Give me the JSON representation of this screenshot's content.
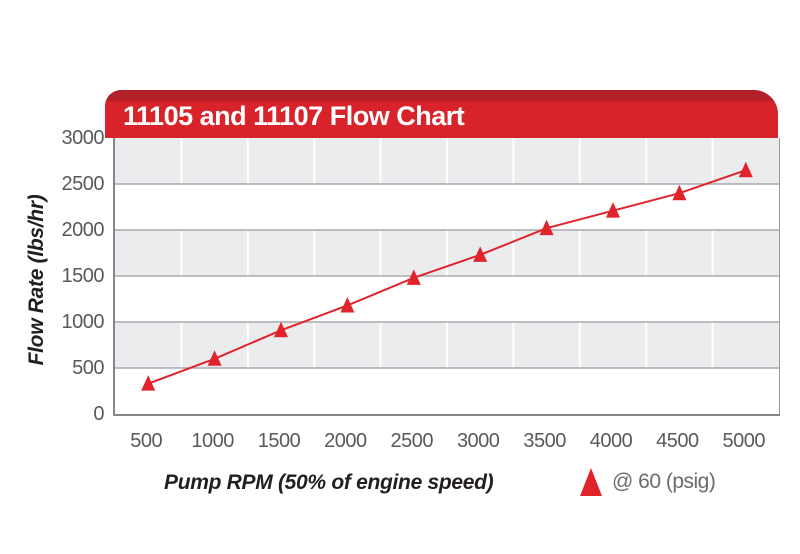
{
  "chart_data": {
    "type": "line",
    "title": "11105 and 11107 Flow Chart",
    "xlabel": "Pump RPM (50% of engine speed)",
    "ylabel": "Flow Rate (lbs/hr)",
    "categories": [
      "500",
      "1000",
      "1500",
      "2000",
      "2500",
      "3000",
      "3500",
      "4000",
      "4500",
      "5000"
    ],
    "series": [
      {
        "name": "@ 60 (psig)",
        "marker": "triangle-up",
        "color": "#e1232b",
        "values": [
          330,
          600,
          910,
          1180,
          1480,
          1730,
          2020,
          2210,
          2400,
          2650
        ]
      }
    ],
    "ylim": [
      0,
      3000
    ],
    "yticks": [
      0,
      500,
      1000,
      1500,
      2000,
      2500,
      3000
    ],
    "grid": "horizontal gray gridlines every 500, alternating gray/white horizontal bands, white vertical gridlines between categories",
    "legend_position": "bottom-right"
  },
  "colors": {
    "header_red": "#d8232b",
    "header_red_dark": "#b2202a",
    "series_red": "#e1232b",
    "band_gray": "#ebecee",
    "h_gridline": "#a8aaad",
    "axis_line": "#85878a",
    "tick_text": "#58595b",
    "axis_title_text": "#231f20",
    "header_text": "#ffffff"
  }
}
